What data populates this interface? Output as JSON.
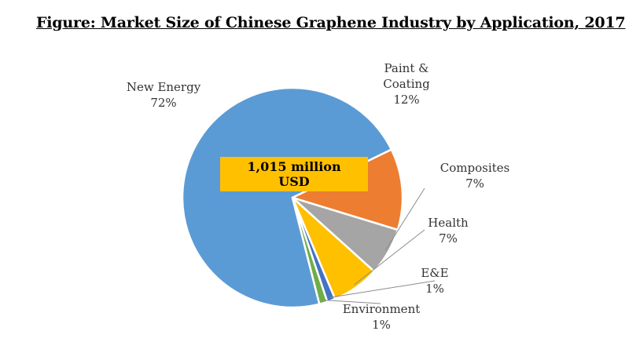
{
  "title": "Figure: Market Size of Chinese Graphene Industry by Application, 2017",
  "chart_data": {
    "type": "pie",
    "title": "Figure: Market Size of Chinese Graphene Industry by Application, 2017",
    "total_label": [
      "1,015 million",
      "USD"
    ],
    "slices": [
      {
        "name": "New Energy",
        "lines": [
          "New Energy"
        ],
        "percent_label": "72%",
        "value": 72,
        "color": "#5B9BD5"
      },
      {
        "name": "Paint & Coating",
        "lines": [
          "Paint &",
          "Coating"
        ],
        "percent_label": "12%",
        "value": 12,
        "color": "#ED7D31"
      },
      {
        "name": "Composites",
        "lines": [
          "Composites"
        ],
        "percent_label": "7%",
        "value": 7,
        "color": "#A5A5A5"
      },
      {
        "name": "Health",
        "lines": [
          "Health"
        ],
        "percent_label": "7%",
        "value": 7,
        "color": "#FFC000"
      },
      {
        "name": "E&E",
        "lines": [
          "E&E"
        ],
        "percent_label": "1%",
        "value": 1.2,
        "color": "#4472C4"
      },
      {
        "name": "Environment",
        "lines": [
          "Environment"
        ],
        "percent_label": "1%",
        "value": 1.2,
        "color": "#70AD47"
      }
    ],
    "total_box_color": "#FFC000",
    "legend": "none"
  }
}
